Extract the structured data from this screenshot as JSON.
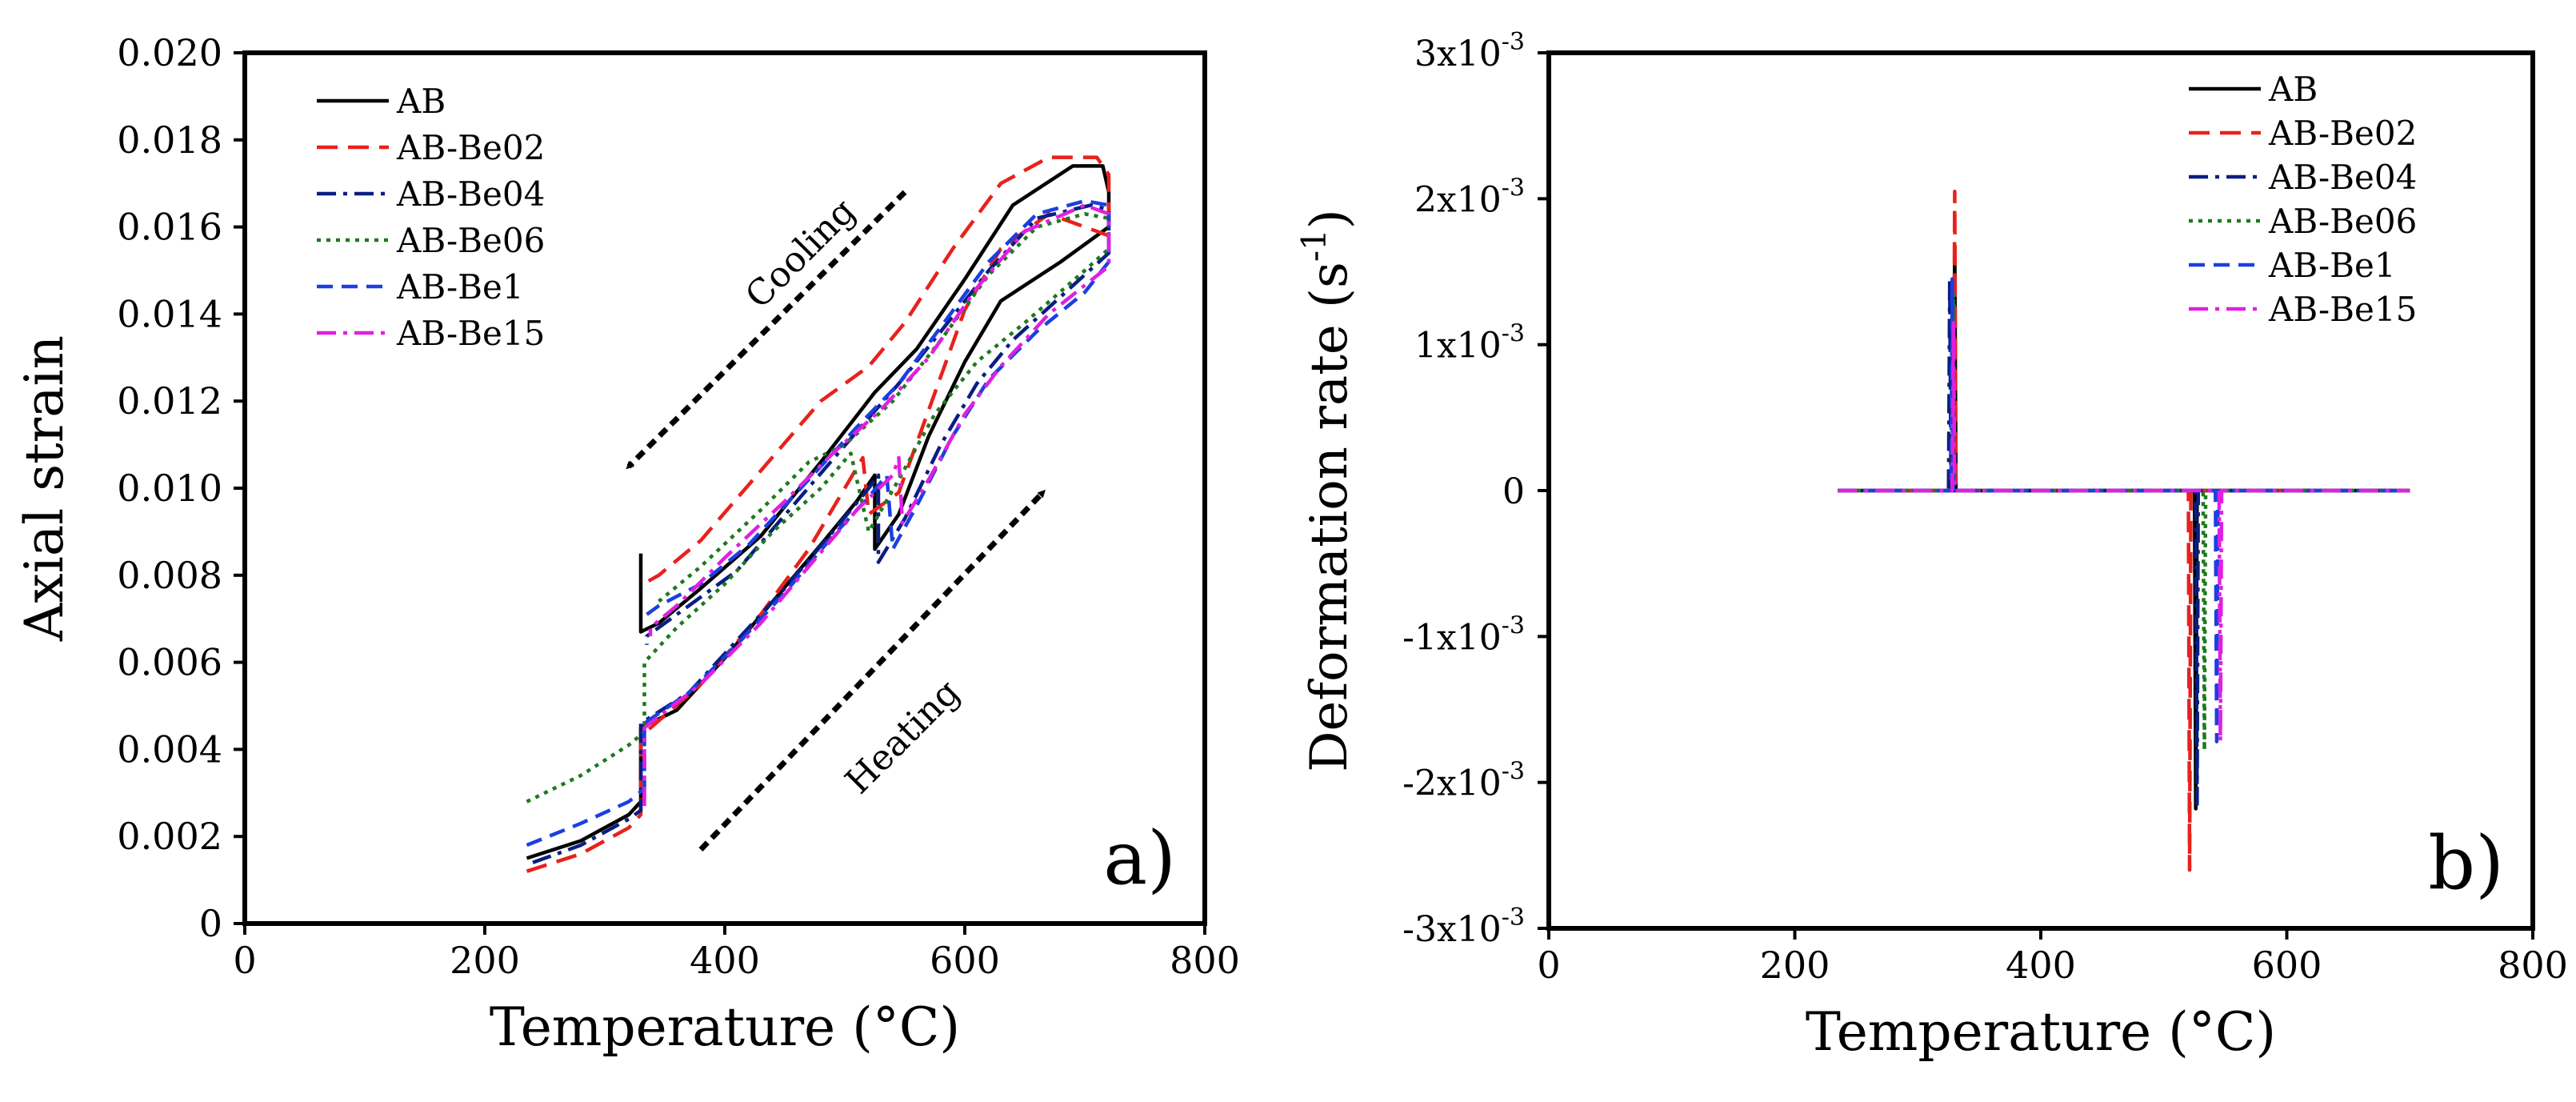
{
  "chart_data": [
    {
      "type": "line",
      "panel_label": "a)",
      "xlabel": "Temperature (°C)",
      "ylabel": "Axial strain",
      "xlim": [
        0,
        800
      ],
      "ylim": [
        0,
        0.02
      ],
      "x_ticks": [
        0,
        200,
        400,
        600,
        800
      ],
      "x_tick_labels": [
        "0",
        "200",
        "400",
        "600",
        "800"
      ],
      "y_ticks": [
        0,
        0.002,
        0.004,
        0.006,
        0.008,
        0.01,
        0.012,
        0.014,
        0.016,
        0.018,
        0.02
      ],
      "y_tick_labels": [
        "0",
        "0.002",
        "0.004",
        "0.006",
        "0.008",
        "0.010",
        "0.012",
        "0.014",
        "0.016",
        "0.018",
        "0.020"
      ],
      "legend_position": "top-left",
      "annotations": [
        {
          "text": "Cooling",
          "x": 470,
          "y": 0.0152,
          "angle_deg": -45
        },
        {
          "text": "Heating",
          "x": 555,
          "y": 0.0041,
          "angle_deg": -45
        }
      ],
      "arrows": [
        {
          "name": "cooling",
          "from": [
            550,
            0.0168
          ],
          "to": [
            320,
            0.0105
          ]
        },
        {
          "name": "heating",
          "from": [
            380,
            0.0017
          ],
          "to": [
            665,
            0.0099
          ]
        }
      ],
      "series": [
        {
          "name": "AB",
          "color": "#000000",
          "dash": "solid",
          "points": [
            [
              235,
              0.0015
            ],
            [
              280,
              0.0019
            ],
            [
              320,
              0.0025
            ],
            [
              330,
              0.0028
            ],
            [
              330,
              0.0045
            ],
            [
              360,
              0.0049
            ],
            [
              400,
              0.0061
            ],
            [
              440,
              0.0074
            ],
            [
              480,
              0.0087
            ],
            [
              510,
              0.0097
            ],
            [
              525,
              0.0103
            ],
            [
              525,
              0.0086
            ],
            [
              545,
              0.0094
            ],
            [
              570,
              0.0112
            ],
            [
              600,
              0.0129
            ],
            [
              630,
              0.0143
            ],
            [
              680,
              0.0152
            ],
            [
              720,
              0.016
            ],
            [
              720,
              0.0168
            ],
            [
              715,
              0.0174
            ],
            [
              690,
              0.0174
            ],
            [
              640,
              0.0165
            ],
            [
              600,
              0.0148
            ],
            [
              560,
              0.0132
            ],
            [
              525,
              0.0122
            ],
            [
              480,
              0.0106
            ],
            [
              430,
              0.0089
            ],
            [
              380,
              0.0077
            ],
            [
              345,
              0.0069
            ],
            [
              330,
              0.0067
            ],
            [
              330,
              0.0085
            ]
          ]
        },
        {
          "name": "AB-Be02",
          "color": "#e8211c",
          "dash": "long",
          "points": [
            [
              235,
              0.0012
            ],
            [
              280,
              0.0016
            ],
            [
              320,
              0.0022
            ],
            [
              330,
              0.0025
            ],
            [
              330,
              0.0043
            ],
            [
              380,
              0.0055
            ],
            [
              430,
              0.0071
            ],
            [
              470,
              0.0086
            ],
            [
              500,
              0.01
            ],
            [
              515,
              0.0107
            ],
            [
              520,
              0.0094
            ],
            [
              545,
              0.0099
            ],
            [
              570,
              0.0118
            ],
            [
              600,
              0.0141
            ],
            [
              630,
              0.0155
            ],
            [
              670,
              0.0163
            ],
            [
              720,
              0.0158
            ],
            [
              720,
              0.0172
            ],
            [
              710,
              0.0176
            ],
            [
              670,
              0.0176
            ],
            [
              630,
              0.017
            ],
            [
              590,
              0.0155
            ],
            [
              550,
              0.0138
            ],
            [
              520,
              0.0128
            ],
            [
              480,
              0.012
            ],
            [
              430,
              0.0104
            ],
            [
              380,
              0.0088
            ],
            [
              345,
              0.008
            ],
            [
              332,
              0.0078
            ]
          ]
        },
        {
          "name": "AB-Be04",
          "color": "#0a1e82",
          "dash": "dashdot",
          "points": [
            [
              240,
              0.0014
            ],
            [
              280,
              0.0018
            ],
            [
              320,
              0.0024
            ],
            [
              330,
              0.0026
            ],
            [
              330,
              0.0046
            ],
            [
              370,
              0.0053
            ],
            [
              410,
              0.0065
            ],
            [
              450,
              0.0077
            ],
            [
              490,
              0.009
            ],
            [
              520,
              0.01
            ],
            [
              528,
              0.0103
            ],
            [
              528,
              0.0083
            ],
            [
              550,
              0.0093
            ],
            [
              580,
              0.011
            ],
            [
              610,
              0.0124
            ],
            [
              640,
              0.0134
            ],
            [
              680,
              0.0144
            ],
            [
              720,
              0.0154
            ],
            [
              720,
              0.0164
            ],
            [
              705,
              0.0165
            ],
            [
              660,
              0.0162
            ],
            [
              620,
              0.015
            ],
            [
              580,
              0.0136
            ],
            [
              545,
              0.0124
            ],
            [
              510,
              0.0113
            ],
            [
              460,
              0.0097
            ],
            [
              410,
              0.0081
            ],
            [
              360,
              0.0071
            ],
            [
              335,
              0.0066
            ],
            [
              335,
              0.0064
            ]
          ]
        },
        {
          "name": "AB-Be06",
          "color": "#1e7a1e",
          "dash": "dot",
          "points": [
            [
              235,
              0.0028
            ],
            [
              280,
              0.0034
            ],
            [
              320,
              0.0041
            ],
            [
              333,
              0.0044
            ],
            [
              333,
              0.006
            ],
            [
              360,
              0.0068
            ],
            [
              400,
              0.0078
            ],
            [
              440,
              0.009
            ],
            [
              480,
              0.01
            ],
            [
              505,
              0.0108
            ],
            [
              520,
              0.009
            ],
            [
              545,
              0.0102
            ],
            [
              575,
              0.0117
            ],
            [
              610,
              0.0129
            ],
            [
              650,
              0.0138
            ],
            [
              700,
              0.015
            ],
            [
              720,
              0.0155
            ],
            [
              720,
              0.0162
            ],
            [
              700,
              0.0163
            ],
            [
              660,
              0.016
            ],
            [
              620,
              0.0149
            ],
            [
              580,
              0.0134
            ],
            [
              540,
              0.012
            ],
            [
              500,
              0.011
            ],
            [
              470,
              0.0106
            ],
            [
              430,
              0.0095
            ],
            [
              380,
              0.0082
            ],
            [
              345,
              0.0074
            ]
          ]
        },
        {
          "name": "AB-Be1",
          "color": "#1b3fe0",
          "dash": "dash",
          "points": [
            [
              235,
              0.0018
            ],
            [
              280,
              0.0023
            ],
            [
              320,
              0.0028
            ],
            [
              333,
              0.0031
            ],
            [
              333,
              0.0046
            ],
            [
              370,
              0.0053
            ],
            [
              410,
              0.0064
            ],
            [
              450,
              0.0076
            ],
            [
              490,
              0.0089
            ],
            [
              520,
              0.0098
            ],
            [
              535,
              0.0103
            ],
            [
              540,
              0.0086
            ],
            [
              560,
              0.0096
            ],
            [
              590,
              0.0112
            ],
            [
              620,
              0.0125
            ],
            [
              660,
              0.0136
            ],
            [
              700,
              0.0145
            ],
            [
              720,
              0.0152
            ],
            [
              720,
              0.0165
            ],
            [
              700,
              0.0166
            ],
            [
              660,
              0.0163
            ],
            [
              620,
              0.0152
            ],
            [
              580,
              0.0137
            ],
            [
              545,
              0.0124
            ],
            [
              510,
              0.0114
            ],
            [
              470,
              0.0102
            ],
            [
              420,
              0.0087
            ],
            [
              380,
              0.0078
            ],
            [
              345,
              0.0073
            ],
            [
              335,
              0.0071
            ]
          ]
        },
        {
          "name": "AB-Be15",
          "color": "#e020e0",
          "dash": "dashdot",
          "points": [
            [
              333,
              0.0027
            ],
            [
              333,
              0.0045
            ],
            [
              380,
              0.0055
            ],
            [
              430,
              0.0069
            ],
            [
              470,
              0.0082
            ],
            [
              510,
              0.0095
            ],
            [
              540,
              0.0103
            ],
            [
              545,
              0.0107
            ],
            [
              548,
              0.0092
            ],
            [
              570,
              0.0102
            ],
            [
              600,
              0.0117
            ],
            [
              630,
              0.0128
            ],
            [
              670,
              0.014
            ],
            [
              720,
              0.0151
            ],
            [
              720,
              0.0163
            ],
            [
              700,
              0.0165
            ],
            [
              650,
              0.0159
            ],
            [
              610,
              0.0146
            ],
            [
              570,
              0.013
            ],
            [
              530,
              0.0118
            ],
            [
              490,
              0.0108
            ],
            [
              450,
              0.0097
            ],
            [
              400,
              0.0084
            ],
            [
              360,
              0.0073
            ],
            [
              338,
              0.0068
            ],
            [
              338,
              0.0066
            ]
          ]
        }
      ]
    },
    {
      "type": "line",
      "panel_label": "b)",
      "xlabel": "Temperature (°C)",
      "ylabel_main": "Deformation rate (s",
      "ylabel_sup": "-1",
      "ylabel_end": ")",
      "xlim": [
        0,
        800
      ],
      "ylim": [
        -0.003,
        0.003
      ],
      "x_ticks": [
        0,
        200,
        400,
        600,
        800
      ],
      "x_tick_labels": [
        "0",
        "200",
        "400",
        "600",
        "800"
      ],
      "y_ticks": [
        {
          "value": 0.003,
          "base": "3x10",
          "exp": "-3"
        },
        {
          "value": 0.002,
          "base": "2x10",
          "exp": "-3"
        },
        {
          "value": 0.001,
          "base": "1x10",
          "exp": "-3"
        },
        {
          "value": 0,
          "base": "0",
          "exp": ""
        },
        {
          "value": -0.001,
          "base": "-1x10",
          "exp": "-3"
        },
        {
          "value": -0.002,
          "base": "-2x10",
          "exp": "-3"
        },
        {
          "value": -0.003,
          "base": "-3x10",
          "exp": "-3"
        }
      ],
      "legend_position": "top-right",
      "series": [
        {
          "name": "AB",
          "color": "#000000",
          "dash": "solid",
          "points": [
            [
              235,
              0
            ],
            [
              329,
              0
            ],
            [
              330,
              0.00165
            ],
            [
              331,
              0
            ],
            [
              525,
              0
            ],
            [
              526,
              -0.00218
            ],
            [
              527,
              0
            ],
            [
              700,
              0
            ]
          ]
        },
        {
          "name": "AB-Be02",
          "color": "#e8211c",
          "dash": "long",
          "points": [
            [
              235,
              0
            ],
            [
              329,
              0
            ],
            [
              330,
              0.00205
            ],
            [
              331,
              0
            ],
            [
              520,
              0
            ],
            [
              521,
              -0.0026
            ],
            [
              522,
              0
            ],
            [
              700,
              0
            ]
          ]
        },
        {
          "name": "AB-Be04",
          "color": "#0a1e82",
          "dash": "dashdot",
          "points": [
            [
              235,
              0
            ],
            [
              325,
              0
            ],
            [
              326,
              0.00145
            ],
            [
              327,
              0
            ],
            [
              526,
              0
            ],
            [
              527,
              -0.00215
            ],
            [
              528,
              0
            ],
            [
              700,
              0
            ]
          ]
        },
        {
          "name": "AB-Be06",
          "color": "#1e7a1e",
          "dash": "dot",
          "points": [
            [
              235,
              0
            ],
            [
              328,
              0
            ],
            [
              329,
              0.00135
            ],
            [
              330,
              0
            ],
            [
              532,
              0
            ],
            [
              533,
              -0.00178
            ],
            [
              534,
              0
            ],
            [
              700,
              0
            ]
          ]
        },
        {
          "name": "AB-Be1",
          "color": "#1b3fe0",
          "dash": "dash",
          "points": [
            [
              235,
              0
            ],
            [
              327,
              0
            ],
            [
              328,
              0.00145
            ],
            [
              329,
              0
            ],
            [
              542,
              0
            ],
            [
              543,
              -0.00172
            ],
            [
              544,
              0
            ],
            [
              700,
              0
            ]
          ]
        },
        {
          "name": "AB-Be15",
          "color": "#e020e0",
          "dash": "dashdot",
          "points": [
            [
              235,
              0
            ],
            [
              328,
              0
            ],
            [
              329,
              0.00115
            ],
            [
              330,
              0
            ],
            [
              545,
              0
            ],
            [
              546,
              -0.00172
            ],
            [
              547,
              0
            ],
            [
              700,
              0
            ]
          ]
        }
      ]
    }
  ]
}
